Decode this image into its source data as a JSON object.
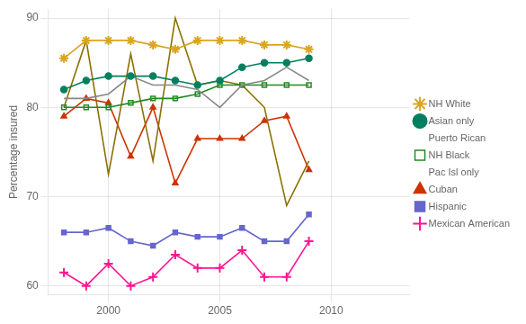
{
  "chart_data": {
    "type": "line",
    "y_label": "Percentage insured",
    "x": [
      1998,
      1999,
      2000,
      2001,
      2002,
      2003,
      2004,
      2005,
      2006,
      2007,
      2008,
      2009
    ],
    "series": [
      {
        "name": "NH White",
        "color": "#DAA520",
        "marker": "star",
        "values": [
          85.5,
          87.5,
          87.5,
          87.5,
          87.0,
          86.5,
          87.5,
          87.5,
          87.5,
          87.0,
          87.0,
          86.5
        ]
      },
      {
        "name": "Asian only",
        "color": "#008060",
        "marker": "circle",
        "values": [
          82.0,
          83.0,
          83.5,
          83.5,
          83.5,
          83.0,
          82.5,
          83.0,
          84.5,
          85.0,
          85.0,
          85.5
        ]
      },
      {
        "name": "Puerto Rican",
        "color": "#888888",
        "marker": "none",
        "values": [
          81.0,
          81.0,
          81.5,
          83.5,
          82.5,
          82.5,
          82.0,
          80.0,
          82.5,
          83.0,
          84.5,
          83.0
        ]
      },
      {
        "name": "NH Black",
        "color": "#228B22",
        "marker": "open_square",
        "values": [
          80.0,
          80.0,
          80.0,
          80.5,
          81.0,
          81.0,
          81.5,
          82.5,
          82.5,
          82.5,
          82.5,
          82.5
        ]
      },
      {
        "name": "Pac Isl only",
        "color": "#8B7000",
        "marker": "none",
        "values": [
          80.0,
          87.5,
          72.5,
          86.0,
          74.0,
          90.0,
          82.5,
          83.0,
          82.5,
          80.0,
          69.0,
          74.0
        ]
      },
      {
        "name": "Cuban",
        "color": "#CC3300",
        "marker": "triangle",
        "values": [
          79.0,
          81.0,
          80.5,
          74.5,
          80.0,
          71.5,
          76.5,
          76.5,
          76.5,
          78.5,
          79.0,
          73.0
        ]
      },
      {
        "name": "Hispanic",
        "color": "#6666CC",
        "marker": "square",
        "values": [
          66.0,
          66.0,
          66.5,
          65.0,
          64.5,
          66.0,
          65.5,
          65.5,
          66.5,
          65.0,
          65.0,
          68.0
        ]
      },
      {
        "name": "Mexican American",
        "color": "#FF1493",
        "marker": "plus",
        "values": [
          61.5,
          60.0,
          62.5,
          60.0,
          61.0,
          63.5,
          62.0,
          62.0,
          64.0,
          61.0,
          61.0,
          65.0
        ]
      }
    ],
    "xlim": [
      1997.3,
      2013.5
    ],
    "xticks": [
      2000,
      2005,
      2010
    ],
    "ylim": [
      59,
      91
    ],
    "yticks": [
      60,
      70,
      80,
      90
    ],
    "grid": true,
    "legend": "right"
  }
}
